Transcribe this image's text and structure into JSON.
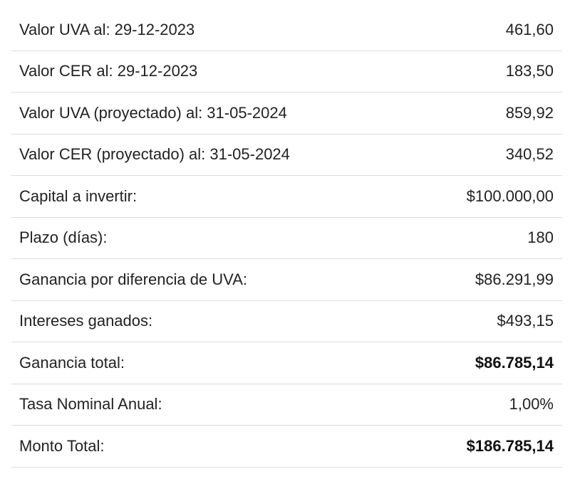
{
  "rows": [
    {
      "label": "Valor UVA al: 29-12-2023",
      "value": "461,60",
      "bold": false
    },
    {
      "label": "Valor CER al: 29-12-2023",
      "value": "183,50",
      "bold": false
    },
    {
      "label": "Valor UVA (proyectado) al: 31-05-2024",
      "value": "859,92",
      "bold": false
    },
    {
      "label": "Valor CER (proyectado) al: 31-05-2024",
      "value": "340,52",
      "bold": false
    },
    {
      "label": "Capital a invertir:",
      "value": "$100.000,00",
      "bold": false
    },
    {
      "label": "Plazo (días):",
      "value": "180",
      "bold": false
    },
    {
      "label": "Ganancia por diferencia de UVA:",
      "value": "$86.291,99",
      "bold": false
    },
    {
      "label": "Intereses ganados:",
      "value": "$493,15",
      "bold": false
    },
    {
      "label": "Ganancia total:",
      "value": "$86.785,14",
      "bold": true
    },
    {
      "label": "Tasa Nominal Anual:",
      "value": "1,00%",
      "bold": false
    },
    {
      "label": "Monto Total:",
      "value": "$186.785,14",
      "bold": true
    }
  ]
}
